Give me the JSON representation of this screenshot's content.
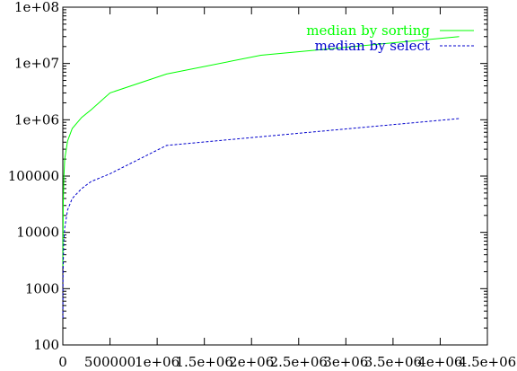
{
  "chart_data": {
    "type": "line",
    "title": "",
    "xlabel": "",
    "ylabel": "",
    "x_scale": "linear",
    "y_scale": "log",
    "xlim": [
      0,
      4500000
    ],
    "ylim": [
      100,
      100000000
    ],
    "grid": false,
    "legend_position": "top-right",
    "x_ticks": [
      0,
      500000,
      1000000,
      1500000,
      2000000,
      2500000,
      3000000,
      3500000,
      4000000,
      4500000
    ],
    "x_tick_labels": [
      "0",
      "500000",
      "1e+06",
      "1.5e+06",
      "2e+06",
      "2.5e+06",
      "3e+06",
      "3.5e+06",
      "4e+06",
      "4.5e+06"
    ],
    "y_ticks": [
      100,
      1000,
      10000,
      100000,
      1000000,
      10000000,
      100000000
    ],
    "y_tick_labels": [
      "100",
      "1000",
      "10000",
      "100000",
      "1e+06",
      "1e+07",
      "1e+08"
    ],
    "series": [
      {
        "name": "median by sorting",
        "color": "#00ff00",
        "dash": "solid",
        "x": [
          1000,
          2000,
          5000,
          10000,
          20000,
          50000,
          100000,
          200000,
          300000,
          500000,
          1100000,
          2100000,
          4200000
        ],
        "y": [
          2500,
          8000,
          35000,
          90000,
          200000,
          420000,
          700000,
          1100000,
          1500000,
          3000000,
          6500000,
          14000000,
          30000000
        ]
      },
      {
        "name": "median by select",
        "color": "#0000cc",
        "dash": "dashed",
        "x": [
          1000,
          2000,
          5000,
          10000,
          20000,
          50000,
          100000,
          200000,
          300000,
          500000,
          1100000,
          2100000,
          4200000
        ],
        "y": [
          300,
          1500,
          3000,
          7000,
          12000,
          25000,
          40000,
          60000,
          80000,
          110000,
          350000,
          500000,
          1050000
        ]
      }
    ]
  }
}
